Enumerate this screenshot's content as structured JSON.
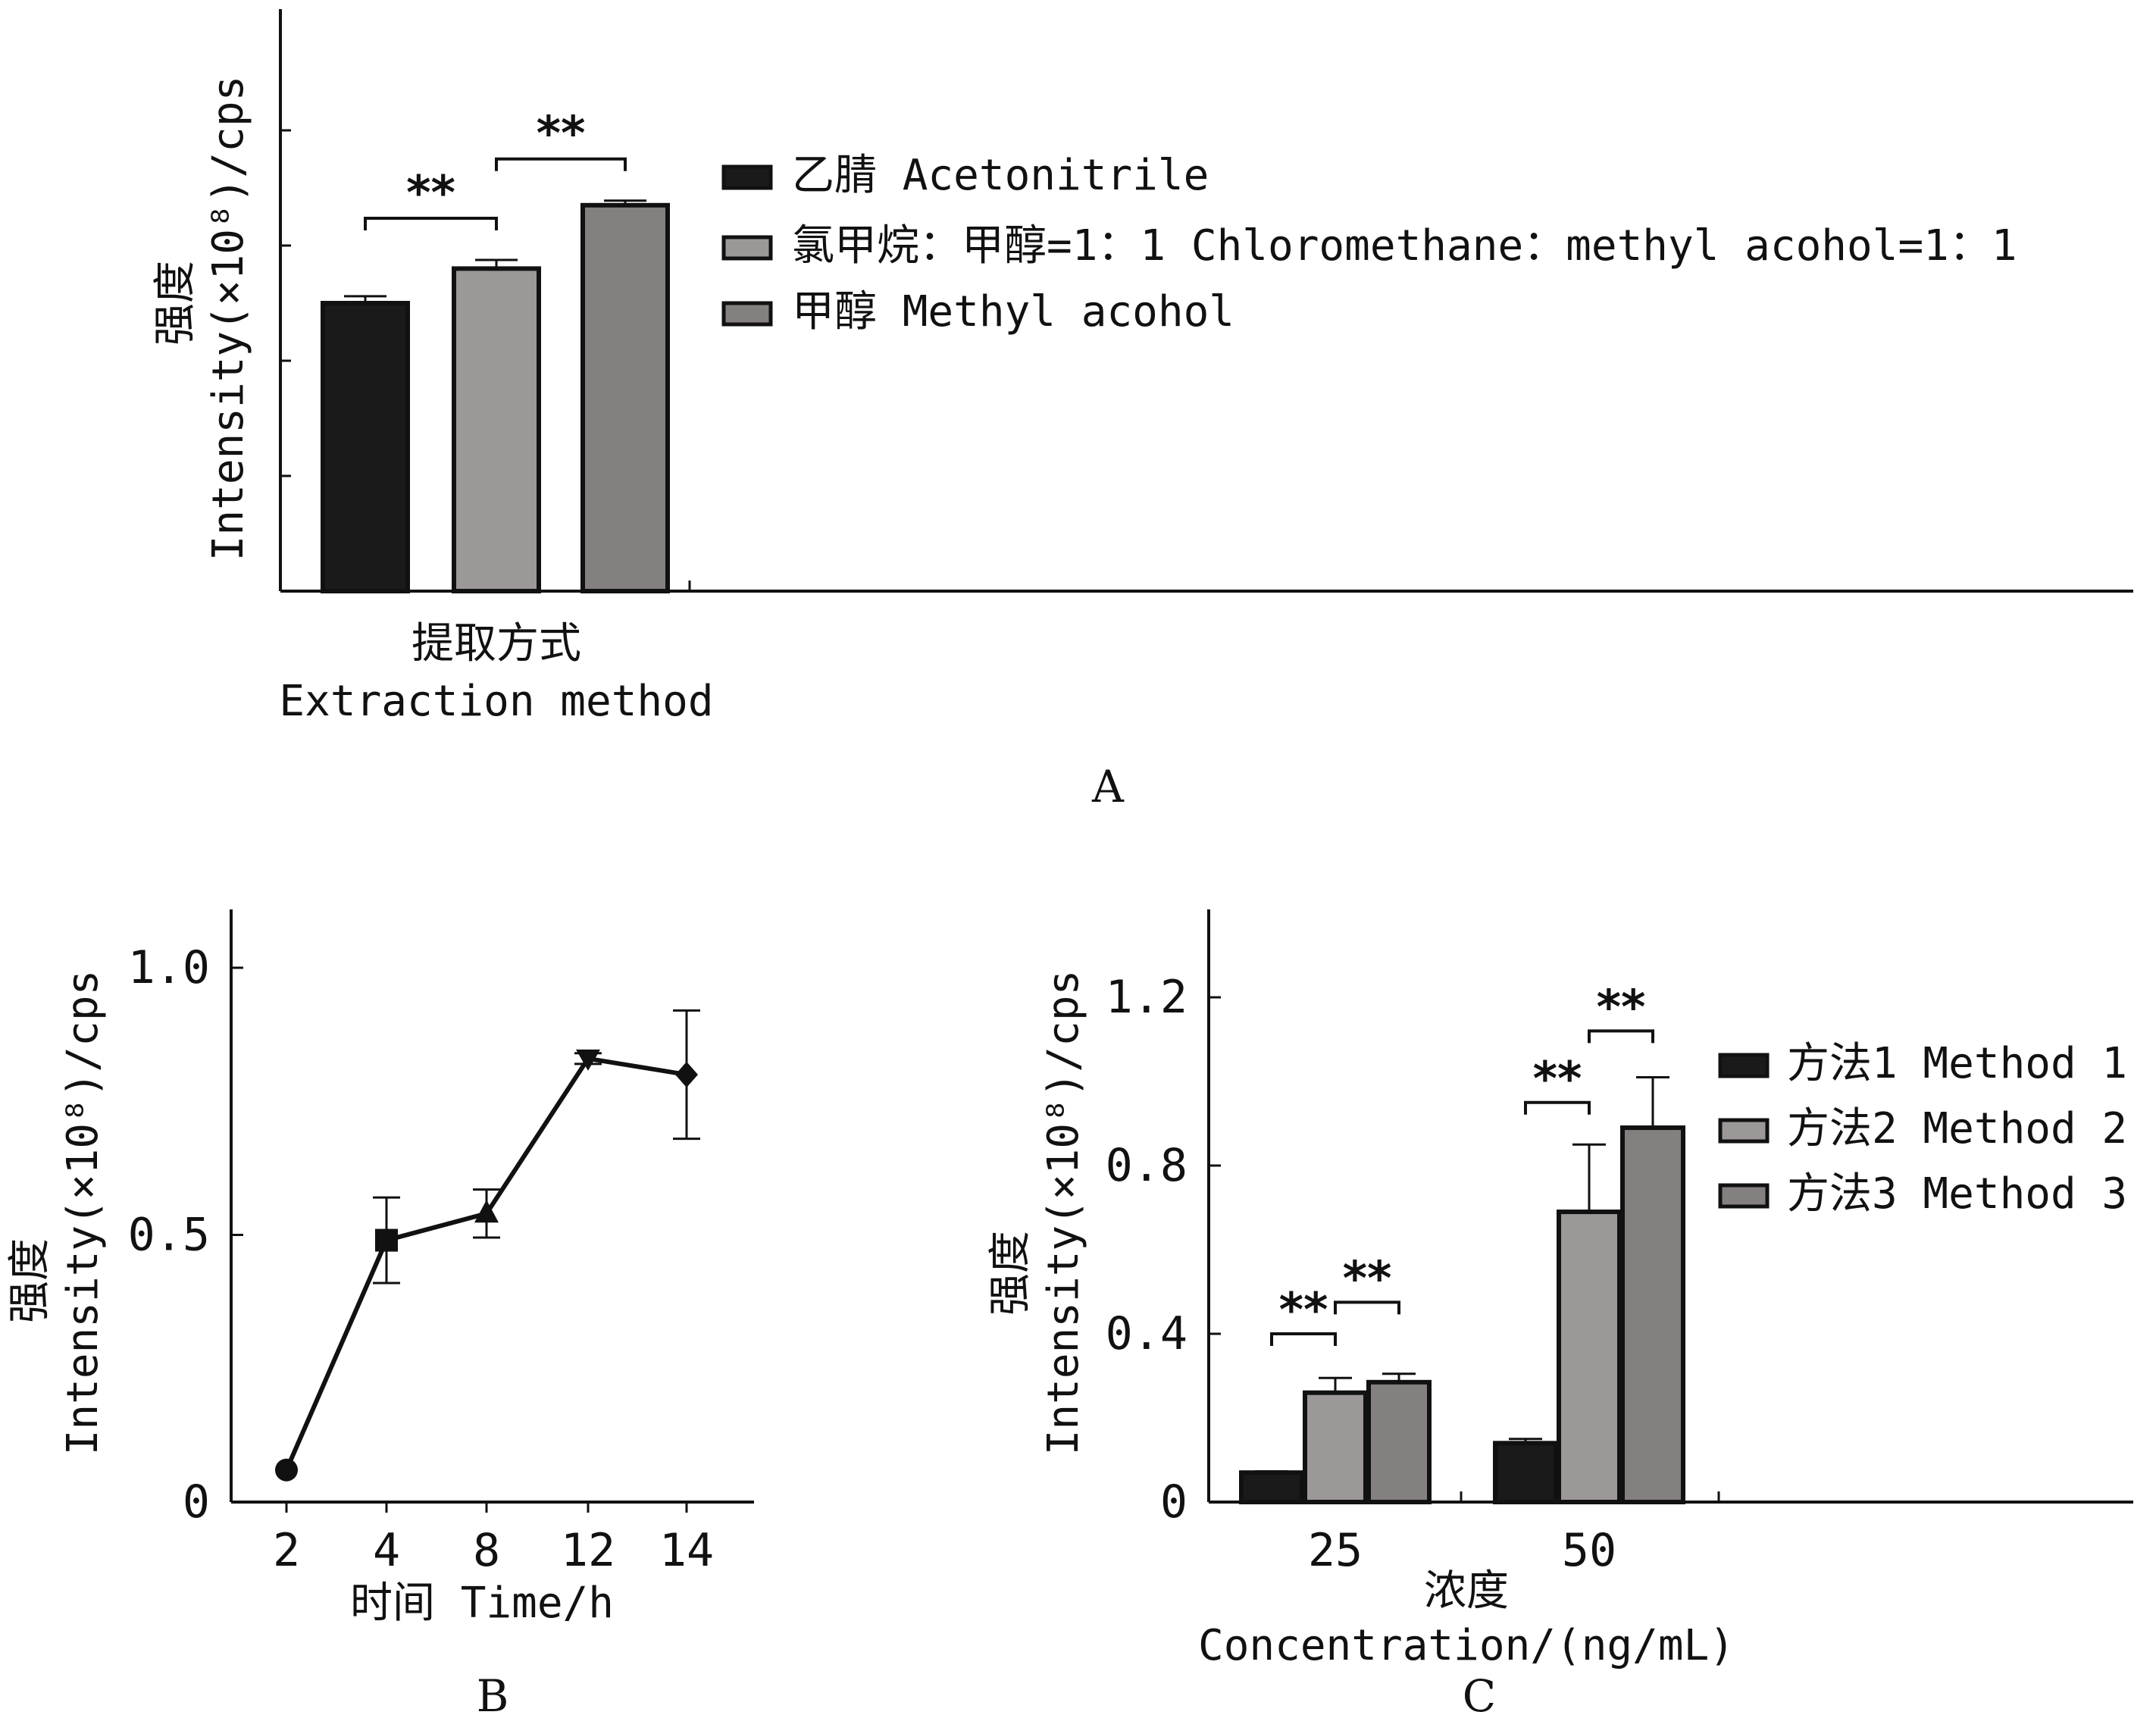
{
  "colors": {
    "black": "#1a1a1a",
    "lightgray": "#9c9898",
    "darkgray": "#858080",
    "outline": "#111111",
    "axis": "#111111"
  },
  "chart_data": [
    {
      "panel": "A",
      "type": "bar",
      "panel_label": "A",
      "xlabel_zh": "提取方式",
      "xlabel_en": "Extraction method",
      "ylabel_zh": "强度",
      "ylabel_en": "Intensity(×10⁸)/cps",
      "ylim": [
        0,
        1.0
      ],
      "yticks_labeled": false,
      "categories": [
        "提取方式 Extraction method"
      ],
      "series": [
        {
          "name": "乙腈 Acetonitrile",
          "values": [
            0.5
          ],
          "error": [
            0.012
          ],
          "color": "#1a1a1a"
        },
        {
          "name": "氯甲烷：甲醇=1：1 Chloromethane：methyl acohol=1：1",
          "values": [
            0.56
          ],
          "error": [
            0.015
          ],
          "color": "#9c9898"
        },
        {
          "name": "甲醇 Methyl acohol",
          "values": [
            0.67
          ],
          "error": [
            0.008
          ],
          "color": "#858080"
        }
      ],
      "significance": [
        {
          "from": 0,
          "to": 1,
          "text": "**"
        },
        {
          "from": 1,
          "to": 2,
          "text": "**"
        }
      ],
      "legend_position": "right"
    },
    {
      "panel": "B",
      "type": "line",
      "panel_label": "B",
      "xlabel": "时间 Time/h",
      "ylabel_zh": "强度",
      "ylabel_en": "Intensity(×10⁸)/cps",
      "categories": [
        "2",
        "4",
        "8",
        "12",
        "14"
      ],
      "values": [
        0.06,
        0.49,
        0.54,
        0.83,
        0.8
      ],
      "error": [
        0,
        0.08,
        0.045,
        0.01,
        0.12
      ],
      "markers": [
        "circle",
        "square",
        "triangle-up",
        "triangle-down",
        "diamond"
      ],
      "ylim": [
        0,
        1.1
      ],
      "yticks": [
        "0",
        "0.5",
        "1.0"
      ],
      "ytick_values": [
        0,
        0.5,
        1.0
      ]
    },
    {
      "panel": "C",
      "type": "bar",
      "panel_label": "C",
      "xlabel_zh": "浓度",
      "xlabel_en": "Concentration/(ng/mL)",
      "ylabel_zh": "强度",
      "ylabel_en": "Intensity(×10⁸)/cps",
      "categories": [
        "25",
        "50"
      ],
      "ylim": [
        0,
        1.4
      ],
      "yticks": [
        "0",
        "0.4",
        "0.8",
        "1.2"
      ],
      "ytick_values": [
        0,
        0.4,
        0.8,
        1.2
      ],
      "series": [
        {
          "name": "方法1 Method 1",
          "values": [
            0.07,
            0.14
          ],
          "error": [
            0.003,
            0.01
          ],
          "color": "#1a1a1a"
        },
        {
          "name": "方法2 Method 2",
          "values": [
            0.26,
            0.69
          ],
          "error": [
            0.035,
            0.16
          ],
          "color": "#9c9898"
        },
        {
          "name": "方法3 Method 3",
          "values": [
            0.285,
            0.89
          ],
          "error": [
            0.02,
            0.12
          ],
          "color": "#858080"
        }
      ],
      "significance": [
        {
          "category": 0,
          "from": 0,
          "to": 1,
          "text": "**"
        },
        {
          "category": 0,
          "from": 1,
          "to": 2,
          "text": "**"
        },
        {
          "category": 1,
          "from": 0,
          "to": 1,
          "text": "**"
        },
        {
          "category": 1,
          "from": 1,
          "to": 2,
          "text": "**"
        }
      ],
      "legend_position": "right"
    }
  ]
}
